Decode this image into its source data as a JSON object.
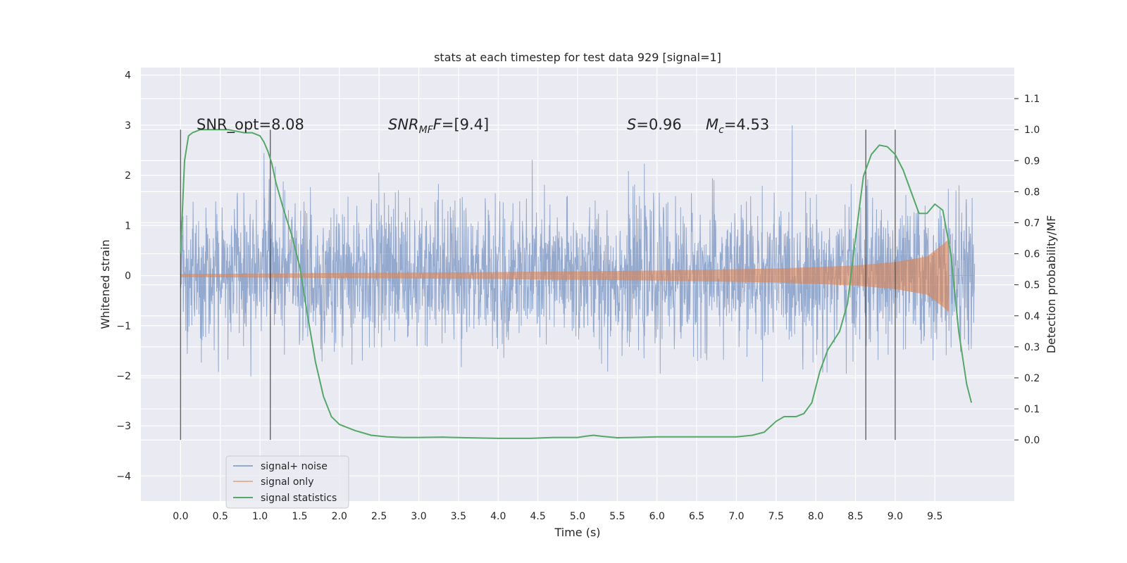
{
  "chart_data": {
    "type": "line",
    "title": "stats at each timestep for test data 929 [signal=1]",
    "xlabel": "Time (s)",
    "ylabel_left": "Whitened strain",
    "ylabel_right": "Detection probability/MF",
    "xlim": [
      -0.5,
      10.5
    ],
    "ylim_left": [
      -4.5,
      4.15
    ],
    "ylim_right": [
      -0.197,
      1.2
    ],
    "x_ticks": [
      0.0,
      0.5,
      1.0,
      1.5,
      2.0,
      2.5,
      3.0,
      3.5,
      4.0,
      4.5,
      5.0,
      5.5,
      6.0,
      6.5,
      7.0,
      7.5,
      8.0,
      8.5,
      9.0,
      9.5
    ],
    "x_tick_labels": [
      "0.0",
      "0.5",
      "1.0",
      "1.5",
      "2.0",
      "2.5",
      "3.0",
      "3.5",
      "4.0",
      "4.5",
      "5.0",
      "5.5",
      "6.0",
      "6.5",
      "7.0",
      "7.5",
      "8.0",
      "8.5",
      "9.0",
      "9.5"
    ],
    "left_ticks": [
      4,
      3,
      2,
      1,
      0,
      -1,
      -2,
      -3,
      -4
    ],
    "left_tick_labels": [
      "4",
      "3",
      "2",
      "1",
      "0",
      "−1",
      "−2",
      "−3",
      "−4"
    ],
    "right_ticks": [
      1.1,
      1.0,
      0.9,
      0.8,
      0.7,
      0.6,
      0.5,
      0.4,
      0.3,
      0.2,
      0.1,
      0.0
    ],
    "right_tick_labels": [
      "1.1",
      "1.0",
      "0.9",
      "0.8",
      "0.7",
      "0.6",
      "0.5",
      "0.4",
      "0.3",
      "0.2",
      "0.1",
      "0.0"
    ],
    "grid": true,
    "legend_position": "lower-left",
    "annotations": {
      "snr_opt": "SNR_opt=8.08",
      "snr_mf_main": "SNR",
      "snr_mf_sub": "MF",
      "snr_mf_rest": "=[9.4]",
      "s_var": "S",
      "s_rest": "=0.96",
      "mc_var": "M",
      "mc_sub": "c",
      "mc_rest": "=4.53"
    },
    "vertical_markers": [
      0.0,
      1.13,
      8.63,
      9.0
    ],
    "series": [
      {
        "name": "signal+ noise",
        "color": "#4c72b0",
        "kind": "noise",
        "x_range": [
          0.0,
          10.0
        ],
        "sigma": 0.7,
        "y_clip": [
          -4.05,
          3.7
        ]
      },
      {
        "name": "signal only",
        "color": "#dd8452",
        "kind": "chirp",
        "x_range": [
          0.0,
          9.67
        ],
        "envelope": [
          [
            0.0,
            0.03
          ],
          [
            2.0,
            0.05
          ],
          [
            4.0,
            0.07
          ],
          [
            6.0,
            0.1
          ],
          [
            7.5,
            0.14
          ],
          [
            8.5,
            0.2
          ],
          [
            9.0,
            0.27
          ],
          [
            9.4,
            0.38
          ],
          [
            9.6,
            0.62
          ],
          [
            9.67,
            0.72
          ]
        ]
      },
      {
        "name": "signal statistics",
        "color": "#55a868",
        "kind": "line",
        "axis": "right",
        "x": [
          0.0,
          0.05,
          0.1,
          0.15,
          0.25,
          0.4,
          0.6,
          0.8,
          0.9,
          1.0,
          1.05,
          1.1,
          1.15,
          1.2,
          1.3,
          1.4,
          1.5,
          1.6,
          1.7,
          1.8,
          1.9,
          2.0,
          2.2,
          2.4,
          2.6,
          2.8,
          3.0,
          3.3,
          3.6,
          4.0,
          4.4,
          4.7,
          5.0,
          5.1,
          5.2,
          5.3,
          5.5,
          5.7,
          6.0,
          6.4,
          6.8,
          7.0,
          7.2,
          7.35,
          7.5,
          7.6,
          7.75,
          7.85,
          7.95,
          8.05,
          8.15,
          8.3,
          8.4,
          8.5,
          8.6,
          8.7,
          8.8,
          8.9,
          9.0,
          9.1,
          9.2,
          9.3,
          9.4,
          9.5,
          9.6,
          9.7,
          9.8,
          9.9,
          9.96
        ],
        "y": [
          0.6,
          0.9,
          0.98,
          0.99,
          1.0,
          1.0,
          1.0,
          0.99,
          0.99,
          0.98,
          0.96,
          0.93,
          0.89,
          0.83,
          0.74,
          0.66,
          0.56,
          0.4,
          0.25,
          0.14,
          0.075,
          0.05,
          0.03,
          0.015,
          0.01,
          0.008,
          0.008,
          0.009,
          0.007,
          0.005,
          0.005,
          0.008,
          0.008,
          0.012,
          0.015,
          0.012,
          0.007,
          0.008,
          0.01,
          0.01,
          0.01,
          0.01,
          0.015,
          0.025,
          0.06,
          0.075,
          0.075,
          0.085,
          0.12,
          0.22,
          0.29,
          0.35,
          0.44,
          0.65,
          0.85,
          0.92,
          0.95,
          0.945,
          0.92,
          0.87,
          0.8,
          0.73,
          0.73,
          0.76,
          0.74,
          0.6,
          0.35,
          0.18,
          0.12
        ]
      }
    ]
  }
}
